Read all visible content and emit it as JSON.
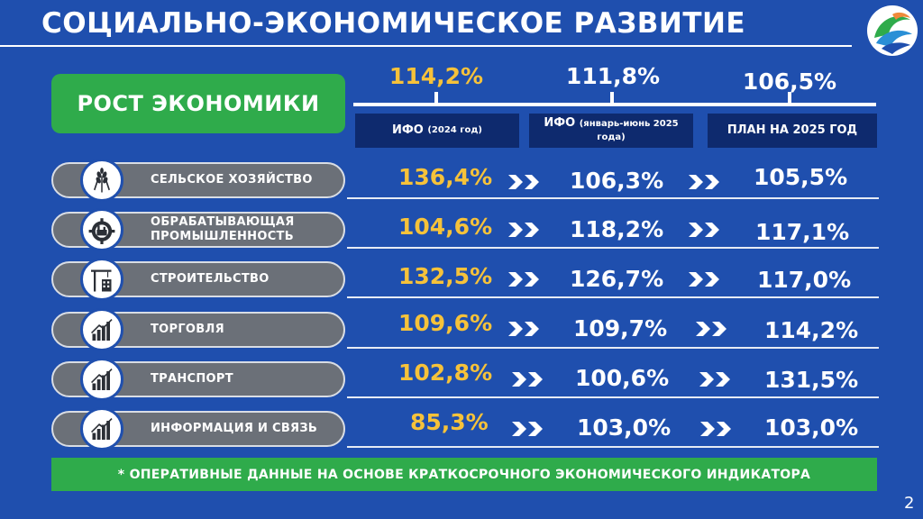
{
  "title": "СОЦИАЛЬНО-ЭКОНОМИЧЕСКОЕ РАЗВИТИЕ",
  "badge": "РОСТ ЭКОНОМИКИ",
  "headers": [
    {
      "value": "114,2%",
      "label": "ИФО",
      "note": "(2024 год)"
    },
    {
      "value": "111,8%",
      "label": "ИФО",
      "note": "(январь-июнь 2025 года)"
    },
    {
      "value": "106,5%",
      "label": "ПЛАН НА 2025 ГОД",
      "note": ""
    }
  ],
  "rows": [
    {
      "icon": "wheat-icon",
      "label_1": "СЕЛЬСКОЕ ХОЗЯЙСТВО",
      "label_2": "",
      "v2024": "136,4%",
      "v2025h1": "106,3%",
      "plan": "105,5%"
    },
    {
      "icon": "factory-gear-icon",
      "label_1": "ОБРАБАТЫВАЮЩАЯ",
      "label_2": "ПРОМЫШЛЕННОСТЬ",
      "v2024": "104,6%",
      "v2025h1": "118,2%",
      "plan": "117,1%"
    },
    {
      "icon": "crane-building-icon",
      "label_1": "СТРОИТЕЛЬСТВО",
      "label_2": "",
      "v2024": "132,5%",
      "v2025h1": "126,7%",
      "plan": "117,0%"
    },
    {
      "icon": "growth-chart-icon",
      "label_1": "ТОРГОВЛЯ",
      "label_2": "",
      "v2024": "109,6%",
      "v2025h1": "109,7%",
      "plan": "114,2%"
    },
    {
      "icon": "growth-chart-icon",
      "label_1": "ТРАНСПОРТ",
      "label_2": "",
      "v2024": "102,8%",
      "v2025h1": "100,6%",
      "plan": "131,5%"
    },
    {
      "icon": "growth-chart-icon",
      "label_1": "ИНФОРМАЦИЯ И СВЯЗЬ",
      "label_2": "",
      "v2024": "85,3%",
      "v2025h1": "103,0%",
      "plan": "103,0%"
    }
  ],
  "footnote": "* ОПЕРАТИВНЫЕ ДАННЫЕ НА ОСНОВЕ КРАТКОСРОЧНОГО ЭКОНОМИЧЕСКОГО ИНДИКАТОРА",
  "page_number": "2",
  "colors": {
    "background": "#1f4fae",
    "accent_green": "#2fab4b",
    "highlight_yellow": "#f6c23a",
    "header_box": "#0e2a6e",
    "pill_gray": "#6b7078"
  }
}
